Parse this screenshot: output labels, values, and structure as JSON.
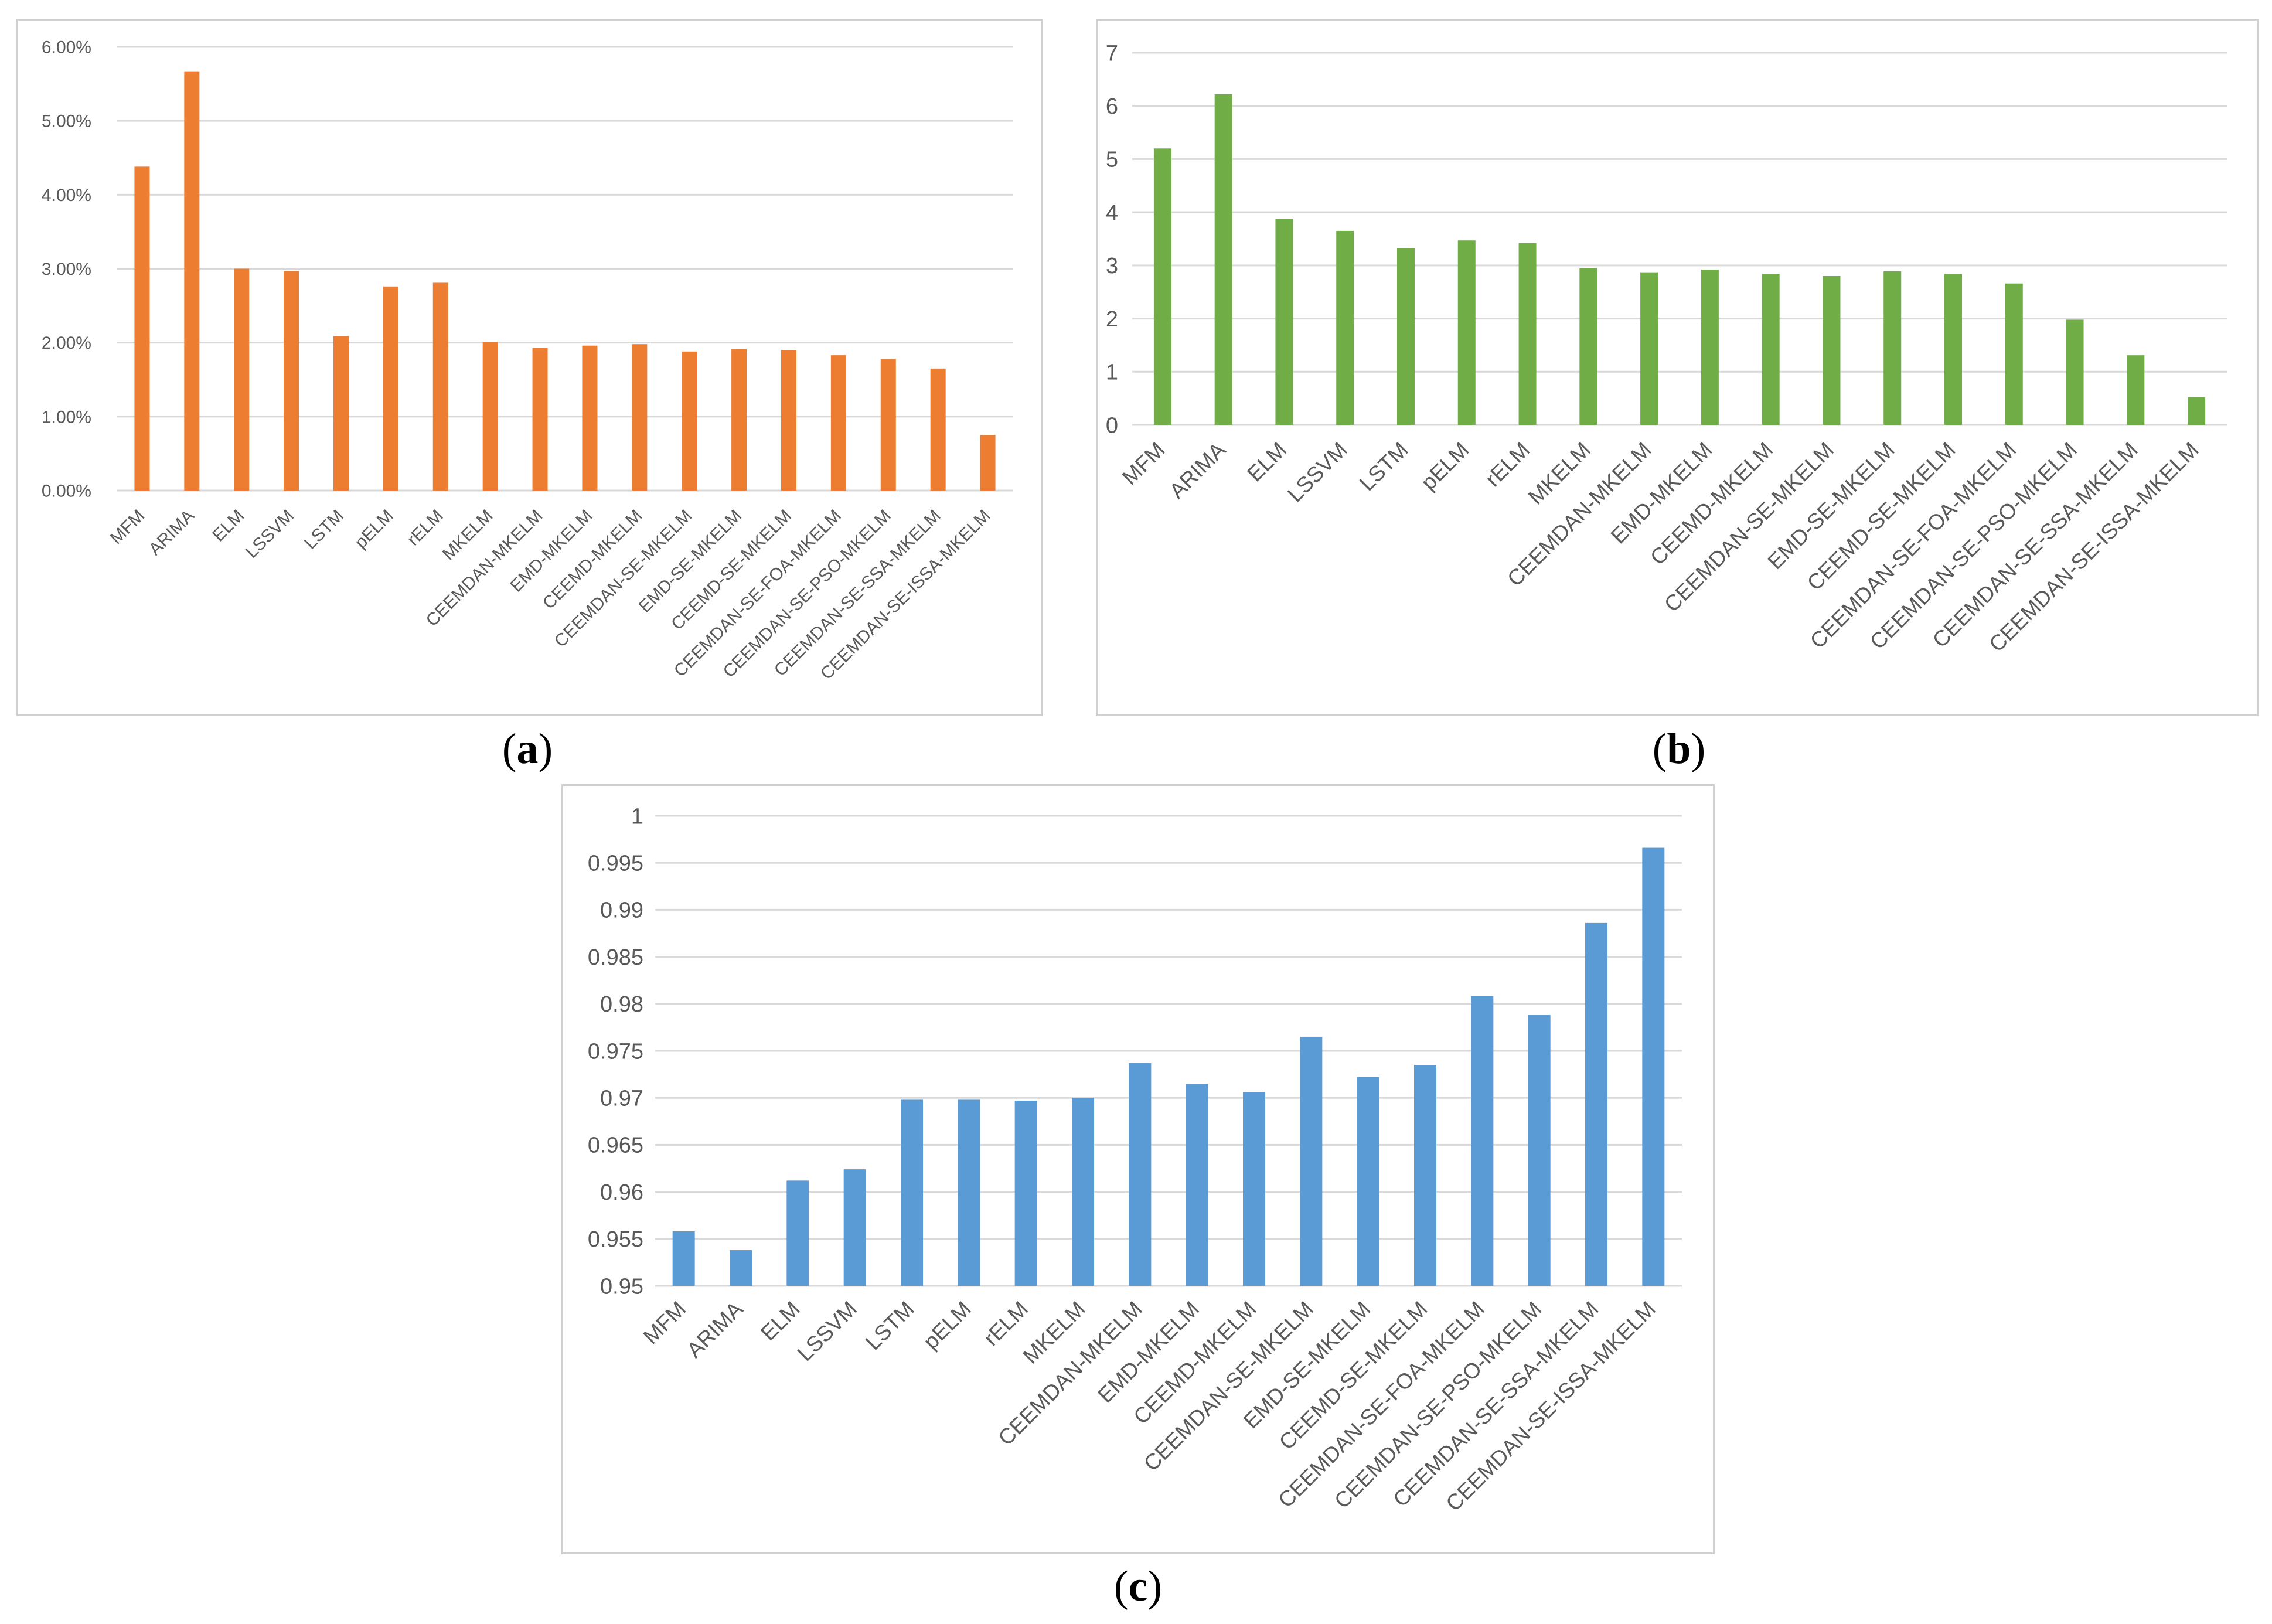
{
  "colors": {
    "a": "#ED7D31",
    "b": "#70AD47",
    "c": "#5B9BD5",
    "grid": "#d9d9d9",
    "tick": "#595959",
    "frame": "#d0d0d0"
  },
  "chart_data": [
    {
      "id": "a",
      "type": "bar",
      "panel_label": "(a)",
      "panel_letter": "a",
      "categories": [
        "MFM",
        "ARIMA",
        "ELM",
        "LSSVM",
        "LSTM",
        "pELM",
        "rELM",
        "MKELM",
        "CEEMDAN-MKELM",
        "EMD-MKELM",
        "CEEMD-MKELM",
        "CEEMDAN-SE-MKELM",
        "EMD-SE-MKELM",
        "CEEMD-SE-MKELM",
        "CEEMDAN-SE-FOA-MKELM",
        "CEEMDAN-SE-PSO-MKELM",
        "CEEMDAN-SE-SSA-MKELM",
        "CEEMDAN-SE-ISSA-MKELM"
      ],
      "values": [
        4.38,
        5.67,
        3.0,
        2.97,
        2.09,
        2.76,
        2.81,
        2.01,
        1.93,
        1.96,
        1.98,
        1.88,
        1.91,
        1.9,
        1.83,
        1.78,
        1.65,
        0.75
      ],
      "ylim": [
        0,
        6
      ],
      "ticks": [
        0,
        1,
        2,
        3,
        4,
        5,
        6
      ],
      "tick_labels": [
        "0.00%",
        "1.00%",
        "2.00%",
        "3.00%",
        "4.00%",
        "5.00%",
        "6.00%"
      ],
      "title": "",
      "xlabel": "",
      "ylabel": "",
      "grid": true
    },
    {
      "id": "b",
      "type": "bar",
      "panel_label": "(b)",
      "panel_letter": "b",
      "categories": [
        "MFM",
        "ARIMA",
        "ELM",
        "LSSVM",
        "LSTM",
        "pELM",
        "rELM",
        "MKELM",
        "CEEMDAN-MKELM",
        "EMD-MKELM",
        "CEEMD-MKELM",
        "CEEMDAN-SE-MKELM",
        "EMD-SE-MKELM",
        "CEEMD-SE-MKELM",
        "CEEMDAN-SE-FOA-MKELM",
        "CEEMDAN-SE-PSO-MKELM",
        "CEEMDAN-SE-SSA-MKELM",
        "CEEMDAN-SE-ISSA-MKELM"
      ],
      "values": [
        5.2,
        6.22,
        3.88,
        3.65,
        3.32,
        3.47,
        3.42,
        2.95,
        2.87,
        2.92,
        2.84,
        2.8,
        2.89,
        2.84,
        2.66,
        1.98,
        1.31,
        0.52
      ],
      "ylim": [
        0,
        7
      ],
      "ticks": [
        0,
        1,
        2,
        3,
        4,
        5,
        6,
        7
      ],
      "tick_labels": [
        "0",
        "1",
        "2",
        "3",
        "4",
        "5",
        "6",
        "7"
      ],
      "title": "",
      "xlabel": "",
      "ylabel": "",
      "grid": true
    },
    {
      "id": "c",
      "type": "bar",
      "panel_label": "(c)",
      "panel_letter": "c",
      "categories": [
        "MFM",
        "ARIMA",
        "ELM",
        "LSSVM",
        "LSTM",
        "pELM",
        "rELM",
        "MKELM",
        "CEEMDAN-MKELM",
        "EMD-MKELM",
        "CEEMD-MKELM",
        "CEEMDAN-SE-MKELM",
        "EMD-SE-MKELM",
        "CEEMD-SE-MKELM",
        "CEEMDAN-SE-FOA-MKELM",
        "CEEMDAN-SE-PSO-MKELM",
        "CEEMDAN-SE-SSA-MKELM",
        "CEEMDAN-SE-ISSA-MKELM"
      ],
      "values": [
        0.9558,
        0.9538,
        0.9612,
        0.9624,
        0.9698,
        0.9698,
        0.9697,
        0.97,
        0.9737,
        0.9715,
        0.9706,
        0.9765,
        0.9722,
        0.9735,
        0.9808,
        0.9788,
        0.9886,
        0.9966
      ],
      "ylim": [
        0.95,
        1.0
      ],
      "ticks": [
        0.95,
        0.955,
        0.96,
        0.965,
        0.97,
        0.975,
        0.98,
        0.985,
        0.99,
        0.995,
        1.0
      ],
      "tick_labels": [
        "0.95",
        "0.955",
        "0.96",
        "0.965",
        "0.97",
        "0.975",
        "0.98",
        "0.985",
        "0.99",
        "0.995",
        "1"
      ],
      "title": "",
      "xlabel": "",
      "ylabel": "",
      "grid": true
    }
  ]
}
